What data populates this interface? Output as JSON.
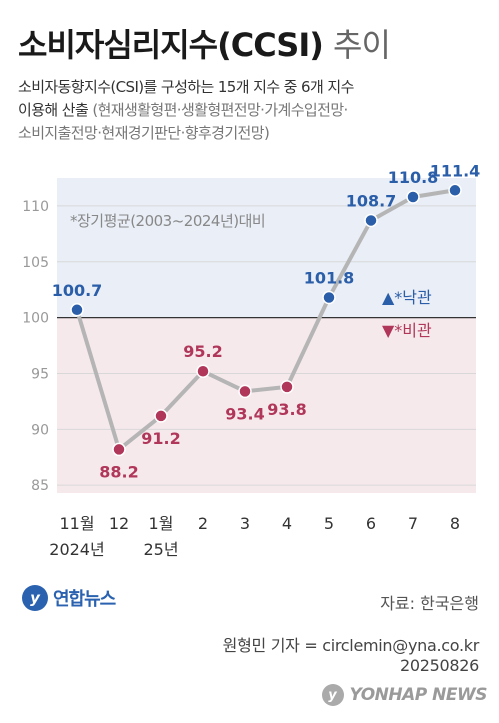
{
  "header": {
    "title_main": "소비자심리지수(CCSI)",
    "title_sub": "추이",
    "desc_main_1": "소비자동향지수(CSI)를 구성하는 15개 지수 중 6개 지수",
    "desc_main_2": "이용해 산출",
    "desc_light_2": "(현재생활형편·생활형편전망·가계수입전망·",
    "desc_light_3": "소비지출전망·현재경기판단·향후경기전망)"
  },
  "chart_data": {
    "type": "line",
    "x": [
      "11월",
      "12",
      "1월",
      "2",
      "3",
      "4",
      "5",
      "6",
      "7",
      "8"
    ],
    "x_sub": [
      "2024년",
      "",
      "25년",
      "",
      "",
      "",
      "",
      "",
      "",
      ""
    ],
    "values": [
      100.7,
      88.2,
      91.2,
      95.2,
      93.4,
      93.8,
      101.8,
      108.7,
      110.8,
      111.4
    ],
    "value_labels": [
      "100.7",
      "88.2",
      "91.2",
      "95.2",
      "93.4",
      "93.8",
      "101.8",
      "108.7",
      "110.8",
      "111.4"
    ],
    "yticks": [
      "85",
      "90",
      "95",
      "100",
      "105",
      "110"
    ],
    "ylim": [
      84.3,
      112.5
    ],
    "baseline": 100,
    "annotation": "*장기평균(2003~2024년)대비",
    "legend_up": "▲*낙관",
    "legend_down": "▼*비관",
    "colors": {
      "optimistic": "#2b5ea8",
      "pessimistic": "#b0365a",
      "line": "#b5b5b5",
      "bg_top": "#e9eef7",
      "bg_bottom": "#f6e9ec"
    }
  },
  "footer": {
    "logo": "연합뉴스",
    "source": "자료: 한국은행",
    "credit_1": "원형민 기자 = circlemin@yna.co.kr",
    "credit_2": "20250826",
    "watermark": "YONHAP NEWS"
  }
}
